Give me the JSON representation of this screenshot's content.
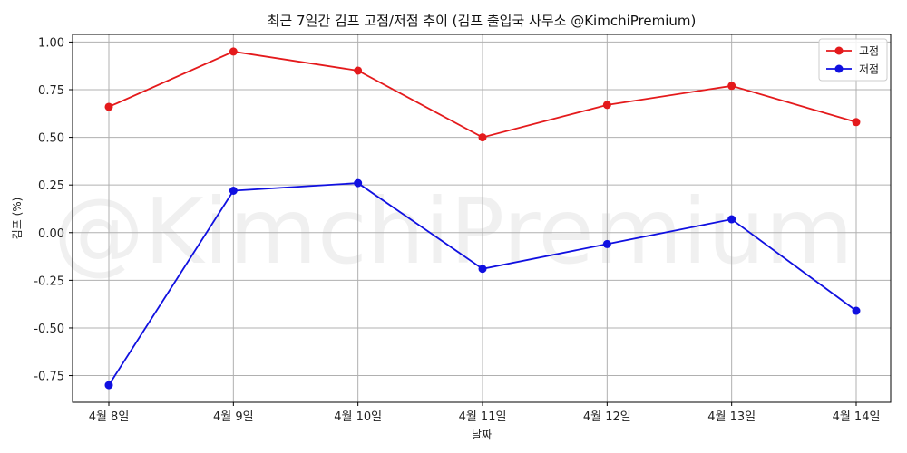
{
  "chart_data": {
    "type": "line",
    "title": "최근 7일간 김프 고점/저점 추이 (김프 출입국 사무소 @KimchiPremium)",
    "xlabel": "날짜",
    "ylabel": "김프 (%)",
    "categories": [
      "4월 8일",
      "4월 9일",
      "4월 10일",
      "4월 11일",
      "4월 12일",
      "4월 13일",
      "4월 14일"
    ],
    "series": [
      {
        "name": "고점",
        "color": "#e41a1c",
        "values": [
          0.66,
          0.95,
          0.85,
          0.5,
          0.67,
          0.77,
          0.58
        ]
      },
      {
        "name": "저점",
        "color": "#1010e0",
        "values": [
          -0.8,
          0.22,
          0.26,
          -0.19,
          -0.06,
          0.07,
          -0.41
        ]
      }
    ],
    "ylim": [
      -0.89,
      1.04
    ],
    "yticks": [
      -0.75,
      -0.5,
      -0.25,
      0.0,
      0.25,
      0.5,
      0.75,
      1.0
    ],
    "ytick_labels": [
      "-0.75",
      "-0.50",
      "-0.25",
      "0.00",
      "0.25",
      "0.50",
      "0.75",
      "1.00"
    ],
    "grid": true,
    "legend": "top-right",
    "watermark": "@KimchiPremium"
  }
}
